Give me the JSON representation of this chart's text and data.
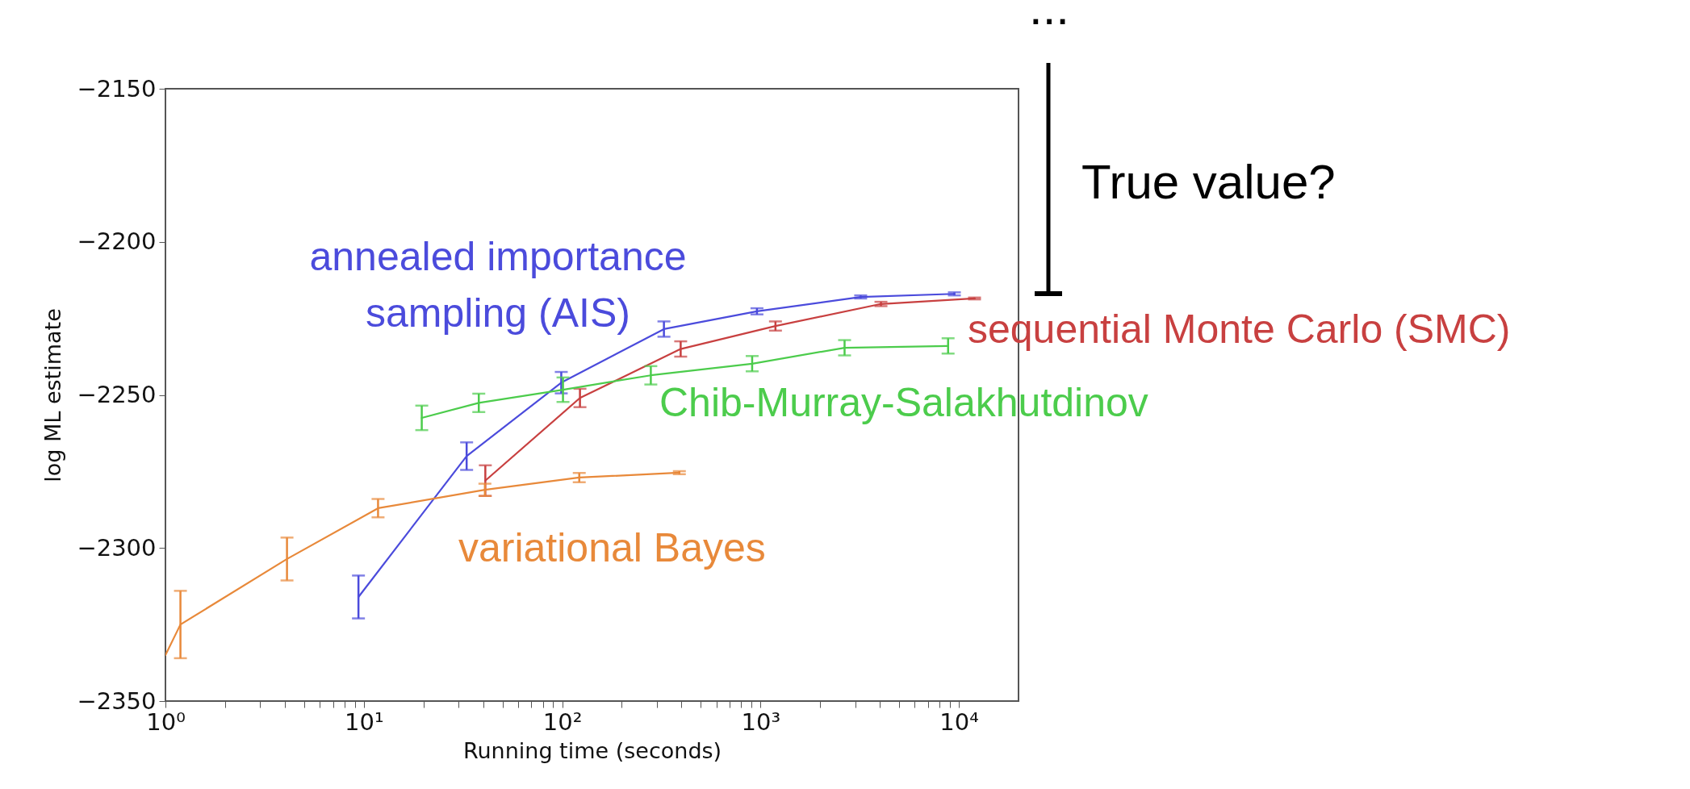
{
  "chart_data": {
    "type": "line",
    "xlabel": "Running time (seconds)",
    "ylabel": "log ML estimate",
    "log": "x",
    "grid": false,
    "line_style": "solid",
    "marker": "none",
    "xlim": [
      1,
      20000
    ],
    "ylim": [
      -2350,
      -2150
    ],
    "xticks": [
      {
        "value": 1,
        "label": "10⁰"
      },
      {
        "value": 2,
        "label": null
      },
      {
        "value": 3,
        "label": null
      },
      {
        "value": 4,
        "label": null
      },
      {
        "value": 5,
        "label": null
      },
      {
        "value": 6,
        "label": null
      },
      {
        "value": 7,
        "label": null
      },
      {
        "value": 8,
        "label": null
      },
      {
        "value": 9,
        "label": null
      },
      {
        "value": 10,
        "label": "10¹"
      },
      {
        "value": 20,
        "label": null
      },
      {
        "value": 30,
        "label": null
      },
      {
        "value": 40,
        "label": null
      },
      {
        "value": 50,
        "label": null
      },
      {
        "value": 60,
        "label": null
      },
      {
        "value": 70,
        "label": null
      },
      {
        "value": 80,
        "label": null
      },
      {
        "value": 90,
        "label": null
      },
      {
        "value": 100,
        "label": "10²"
      },
      {
        "value": 200,
        "label": null
      },
      {
        "value": 300,
        "label": null
      },
      {
        "value": 400,
        "label": null
      },
      {
        "value": 500,
        "label": null
      },
      {
        "value": 600,
        "label": null
      },
      {
        "value": 700,
        "label": null
      },
      {
        "value": 800,
        "label": null
      },
      {
        "value": 900,
        "label": null
      },
      {
        "value": 1000,
        "label": "10³"
      },
      {
        "value": 2000,
        "label": null
      },
      {
        "value": 3000,
        "label": null
      },
      {
        "value": 4000,
        "label": null
      },
      {
        "value": 5000,
        "label": null
      },
      {
        "value": 6000,
        "label": null
      },
      {
        "value": 7000,
        "label": null
      },
      {
        "value": 8000,
        "label": null
      },
      {
        "value": 9000,
        "label": null
      },
      {
        "value": 10000,
        "label": "10⁴"
      }
    ],
    "yticks": [
      {
        "value": -2350,
        "label": "−2350"
      },
      {
        "value": -2300,
        "label": "−2300"
      },
      {
        "value": -2250,
        "label": "−2250"
      },
      {
        "value": -2200,
        "label": "−2200"
      },
      {
        "value": -2150,
        "label": "−2150"
      }
    ],
    "series": [
      {
        "name": "annealed importance sampling (AIS)",
        "color": "#4b4bdc",
        "x": [
          9.4,
          33,
          99,
          326,
          960,
          3200,
          9500
        ],
        "values": [
          -2316,
          -2270,
          -2246,
          -2228.5,
          -2222.7,
          -2218,
          -2217
        ],
        "errors": [
          7,
          4.5,
          3.5,
          2.5,
          1,
          0.5,
          0.5
        ]
      },
      {
        "name": "sequential Monte Carlo (SMC)",
        "color": "#c84040",
        "x": [
          41,
          123,
          396,
          1190,
          4050,
          12000
        ],
        "values": [
          -2278,
          -2251,
          -2235,
          -2227.5,
          -2220.3,
          -2218.5
        ],
        "errors": [
          5,
          3,
          2.5,
          1.5,
          0.7,
          0.3
        ]
      },
      {
        "name": "Chib-Murray-Salakhutdinov",
        "color": "#4ccc4c",
        "x": [
          19.6,
          38,
          101,
          280,
          908,
          2655,
          8830
        ],
        "values": [
          -2257.5,
          -2252.6,
          -2248.3,
          -2243.6,
          -2239.8,
          -2234.6,
          -2234
        ],
        "errors": [
          4,
          3,
          4,
          3,
          2.5,
          2.5,
          2.5
        ]
      },
      {
        "name": "variational Bayes",
        "color": "#e8893a",
        "x": [
          1,
          1.19,
          4.1,
          11.8,
          40.8,
          122,
          390
        ],
        "values": [
          -2335,
          -2325,
          -2303.6,
          -2287,
          -2281,
          -2277,
          -2275.4
        ],
        "errors": [
          null,
          11,
          7,
          3,
          2,
          1.5,
          0.5
        ]
      }
    ],
    "annotations": [
      "True value?",
      "..."
    ]
  }
}
